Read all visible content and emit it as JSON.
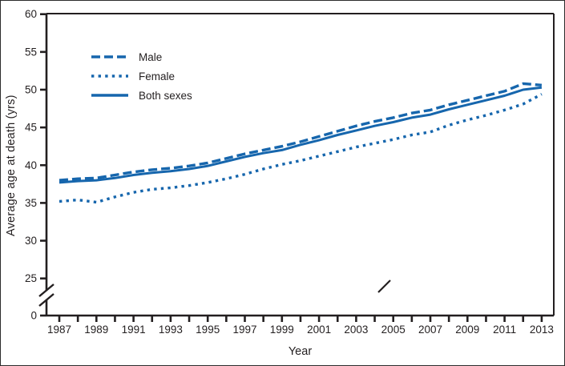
{
  "chart_data": {
    "type": "line",
    "title": "",
    "xlabel": "Year",
    "ylabel": "Average age at death (yrs)",
    "x": [
      1987,
      1988,
      1989,
      1990,
      1991,
      1992,
      1993,
      1994,
      1995,
      1996,
      1997,
      1998,
      1999,
      2000,
      2001,
      2002,
      2003,
      2004,
      2005,
      2006,
      2007,
      2008,
      2009,
      2010,
      2011,
      2012,
      2013
    ],
    "series": [
      {
        "name": "Male",
        "style": "dashed",
        "values": [
          38.0,
          38.2,
          38.3,
          38.7,
          39.1,
          39.4,
          39.6,
          39.9,
          40.3,
          40.9,
          41.5,
          42.0,
          42.5,
          43.1,
          43.8,
          44.5,
          45.2,
          45.8,
          46.3,
          46.9,
          47.3,
          48.0,
          48.6,
          49.2,
          49.8,
          50.8,
          50.6
        ]
      },
      {
        "name": "Female",
        "style": "dotted",
        "values": [
          35.2,
          35.4,
          35.1,
          35.8,
          36.4,
          36.8,
          37.0,
          37.3,
          37.7,
          38.2,
          38.8,
          39.5,
          40.1,
          40.6,
          41.2,
          41.8,
          42.4,
          42.9,
          43.4,
          44.0,
          44.4,
          45.3,
          46.0,
          46.6,
          47.3,
          48.1,
          49.4
        ]
      },
      {
        "name": "Both sexes",
        "style": "solid",
        "values": [
          37.7,
          37.9,
          38.0,
          38.3,
          38.7,
          39.0,
          39.2,
          39.5,
          39.9,
          40.5,
          41.1,
          41.6,
          42.0,
          42.7,
          43.3,
          44.0,
          44.6,
          45.2,
          45.7,
          46.3,
          46.7,
          47.4,
          48.0,
          48.6,
          49.2,
          50.0,
          50.3
        ]
      }
    ],
    "y_ticks": [
      60,
      55,
      50,
      45,
      40,
      35,
      30,
      25
    ],
    "y_axis_zero_label": "0",
    "y_axis_break": true,
    "x_tick_years": [
      1987,
      1988,
      1989,
      1990,
      1991,
      1992,
      1993,
      1994,
      1995,
      1996,
      1997,
      1998,
      1999,
      2000,
      2001,
      2002,
      2003,
      2004,
      2005,
      2006,
      2007,
      2008,
      2009,
      2010,
      2011,
      2012,
      2013
    ],
    "x_labeled_years": [
      1987,
      1989,
      1991,
      1993,
      1995,
      1997,
      1999,
      2001,
      2003,
      2005,
      2007,
      2009,
      2011,
      2013
    ],
    "ylim_display": [
      25,
      60
    ],
    "grid": false,
    "legend_position": "upper-left-inside",
    "line_color": "#1666ad",
    "axis_color": "#231f20"
  }
}
